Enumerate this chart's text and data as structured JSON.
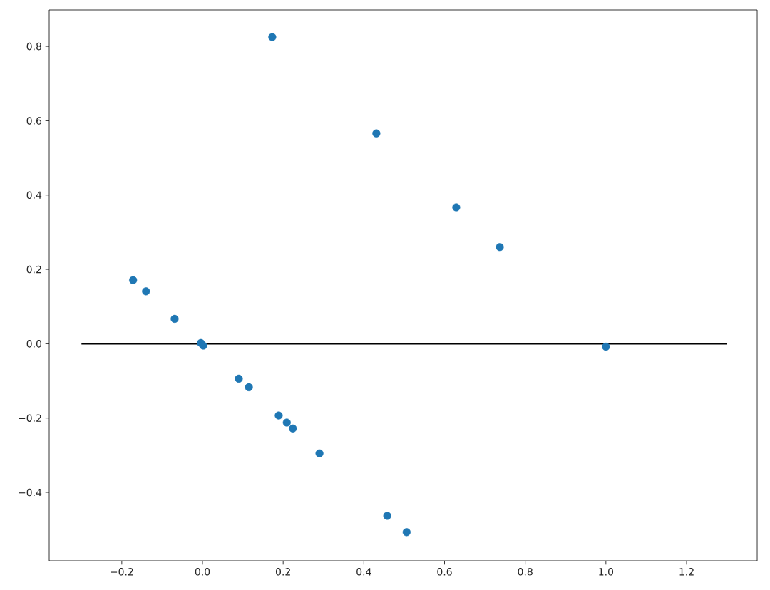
{
  "chart_data": {
    "type": "scatter",
    "xlim": [
      -0.38,
      1.375
    ],
    "ylim": [
      -0.584,
      0.898
    ],
    "xticks": [
      {
        "value": -0.2,
        "label": "−0.2"
      },
      {
        "value": 0.0,
        "label": "0.0"
      },
      {
        "value": 0.2,
        "label": "0.2"
      },
      {
        "value": 0.4,
        "label": "0.4"
      },
      {
        "value": 0.6,
        "label": "0.6"
      },
      {
        "value": 0.8,
        "label": "0.8"
      },
      {
        "value": 1.0,
        "label": "1.0"
      },
      {
        "value": 1.2,
        "label": "1.2"
      }
    ],
    "yticks": [
      {
        "value": -0.4,
        "label": "−0.4"
      },
      {
        "value": -0.2,
        "label": "−0.2"
      },
      {
        "value": 0.0,
        "label": "0.0"
      },
      {
        "value": 0.2,
        "label": "0.2"
      },
      {
        "value": 0.4,
        "label": "0.4"
      },
      {
        "value": 0.6,
        "label": "0.6"
      },
      {
        "value": 0.8,
        "label": "0.8"
      }
    ],
    "series": [
      {
        "marker": "circle",
        "color": "#1f77b4",
        "x": [
          -0.172,
          -0.14,
          -0.069,
          -0.004,
          0.002,
          0.09,
          0.115,
          0.189,
          0.209,
          0.224,
          0.29,
          0.458,
          0.506,
          0.173,
          0.431,
          0.629,
          0.737,
          1.0
        ],
        "values": [
          0.171,
          0.141,
          0.067,
          0.002,
          -0.005,
          -0.094,
          -0.117,
          -0.193,
          -0.212,
          -0.228,
          -0.295,
          -0.463,
          -0.507,
          0.825,
          0.566,
          0.367,
          0.26,
          -0.008
        ]
      },
      {
        "type": "line",
        "marker": "none",
        "color": "#000000",
        "x": [
          -0.3,
          1.3
        ],
        "values": [
          0,
          0
        ]
      }
    ]
  }
}
